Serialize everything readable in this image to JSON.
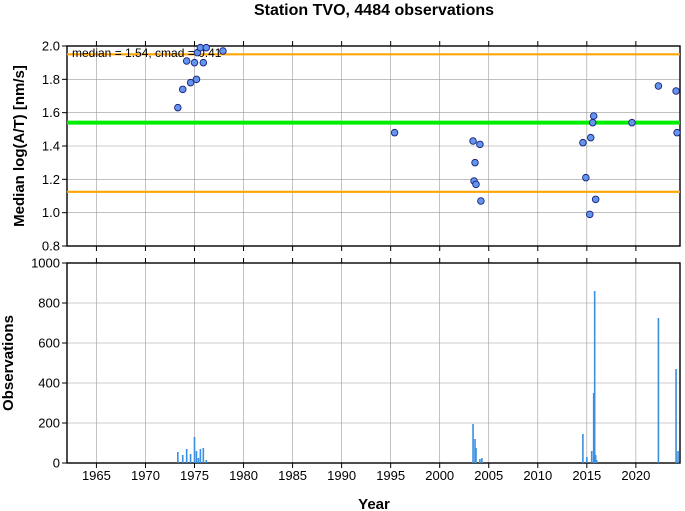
{
  "chart_data": [
    {
      "type": "scatter",
      "title": "Station TVO, 4484 observations",
      "ylabel": "Median log(A/T) [nm/s]",
      "xlim": [
        1962,
        2024.5
      ],
      "ylim": [
        0.8,
        2.0
      ],
      "y_ticks": [
        "0.8",
        "1.0",
        "1.2",
        "1.4",
        "1.6",
        "1.8",
        "2.0"
      ],
      "annotation": "median = 1.54, cmad = 0.41",
      "reference_lines": [
        {
          "y": 1.54,
          "color": "#00ee00"
        },
        {
          "y": 1.95,
          "color": "#ffa500"
        },
        {
          "y": 1.125,
          "color": "#ffa500"
        }
      ],
      "series": [
        {
          "color": "#6495ed",
          "points": [
            [
              1973.3,
              1.63
            ],
            [
              1973.8,
              1.74
            ],
            [
              1974.2,
              1.91
            ],
            [
              1974.6,
              1.78
            ],
            [
              1975.0,
              1.9
            ],
            [
              1975.2,
              1.8
            ],
            [
              1975.3,
              1.96
            ],
            [
              1975.6,
              1.99
            ],
            [
              1975.9,
              1.9
            ],
            [
              1976.2,
              1.99
            ],
            [
              1977.9,
              1.97
            ],
            [
              1995.4,
              1.48
            ],
            [
              2003.4,
              1.43
            ],
            [
              2003.5,
              1.19
            ],
            [
              2003.6,
              1.3
            ],
            [
              2003.7,
              1.17
            ],
            [
              2004.1,
              1.41
            ],
            [
              2004.2,
              1.07
            ],
            [
              2014.6,
              1.42
            ],
            [
              2014.9,
              1.21
            ],
            [
              2015.3,
              0.99
            ],
            [
              2015.4,
              1.45
            ],
            [
              2015.6,
              1.54
            ],
            [
              2015.7,
              1.58
            ],
            [
              2015.9,
              1.08
            ],
            [
              2019.6,
              1.54
            ],
            [
              2022.3,
              1.76
            ],
            [
              2024.1,
              1.73
            ],
            [
              2024.2,
              1.48
            ]
          ]
        }
      ]
    },
    {
      "type": "bar",
      "ylabel": "Observations",
      "xlabel": "Year",
      "xlim": [
        1962,
        2024.5
      ],
      "ylim": [
        0,
        1000
      ],
      "y_ticks": [
        "0",
        "200",
        "400",
        "600",
        "800",
        "1000"
      ],
      "x_ticks": [
        "1965",
        "1970",
        "1975",
        "1980",
        "1985",
        "1990",
        "1995",
        "2000",
        "2005",
        "2010",
        "2015",
        "2020"
      ],
      "series": [
        {
          "color": "#3a8fe0",
          "bars": [
            [
              1973.3,
              55
            ],
            [
              1973.8,
              40
            ],
            [
              1974.2,
              70
            ],
            [
              1974.6,
              45
            ],
            [
              1975.0,
              130
            ],
            [
              1975.2,
              60
            ],
            [
              1975.4,
              25
            ],
            [
              1975.6,
              70
            ],
            [
              1975.9,
              75
            ],
            [
              1976.2,
              15
            ],
            [
              2003.4,
              195
            ],
            [
              2003.6,
              120
            ],
            [
              2003.7,
              75
            ],
            [
              2004.1,
              20
            ],
            [
              2004.3,
              25
            ],
            [
              2014.6,
              145
            ],
            [
              2015.0,
              30
            ],
            [
              2015.5,
              60
            ],
            [
              2015.7,
              350
            ],
            [
              2015.8,
              860
            ],
            [
              2015.9,
              40
            ],
            [
              2016.0,
              15
            ],
            [
              2022.3,
              725
            ],
            [
              2024.1,
              470
            ],
            [
              2024.3,
              60
            ]
          ]
        }
      ]
    }
  ]
}
